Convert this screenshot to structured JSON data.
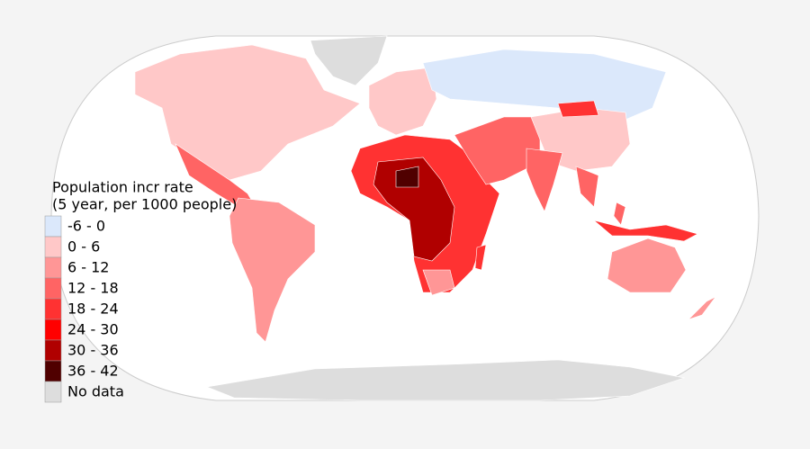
{
  "legend": {
    "title": [
      "Population incr rate",
      "(5 year, per 1000 people)"
    ],
    "items": [
      {
        "label": "-6 - 0",
        "color": "#dbe8fb"
      },
      {
        "label": "0 - 6",
        "color": "#ffc8c8"
      },
      {
        "label": "6 - 12",
        "color": "#ff9696"
      },
      {
        "label": "12 - 18",
        "color": "#ff6464"
      },
      {
        "label": "18 - 24",
        "color": "#ff3232"
      },
      {
        "label": "24 - 30",
        "color": "#ff0000"
      },
      {
        "label": "30 - 36",
        "color": "#b00000"
      },
      {
        "label": "36 - 42",
        "color": "#500000"
      },
      {
        "label": "No data",
        "color": "#dddddd"
      }
    ]
  }
}
